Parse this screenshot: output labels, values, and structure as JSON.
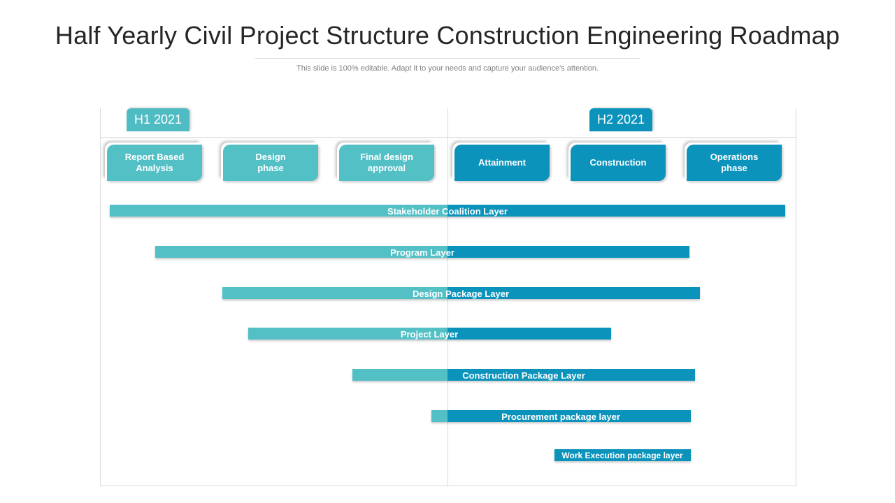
{
  "header": {
    "title": "Half Yearly Civil Project Structure Construction  Engineering Roadmap",
    "subtitle": "This slide is 100% editable. Adapt it to your needs and capture your audience's attention."
  },
  "colors": {
    "teal": "#53c0c6",
    "blue": "#0b93bb"
  },
  "halves": [
    {
      "label": "H1 2021"
    },
    {
      "label": "H2 2021"
    }
  ],
  "phases": [
    {
      "label": "Report Based\nAnalysis",
      "tone": "teal"
    },
    {
      "label": "Design\nphase",
      "tone": "teal"
    },
    {
      "label": "Final design\napproval",
      "tone": "teal"
    },
    {
      "label": "Attainment",
      "tone": "blue"
    },
    {
      "label": "Construction",
      "tone": "blue"
    },
    {
      "label": "Operations\nphase",
      "tone": "blue"
    }
  ],
  "layers": [
    {
      "label": "Stakeholder Coalition Layer"
    },
    {
      "label": "Program Layer"
    },
    {
      "label": "Design  Package Layer"
    },
    {
      "label": "Project Layer"
    },
    {
      "label": "Construction  Package Layer"
    },
    {
      "label": "Procurement package layer"
    },
    {
      "label": "Work Execution  package layer"
    }
  ]
}
